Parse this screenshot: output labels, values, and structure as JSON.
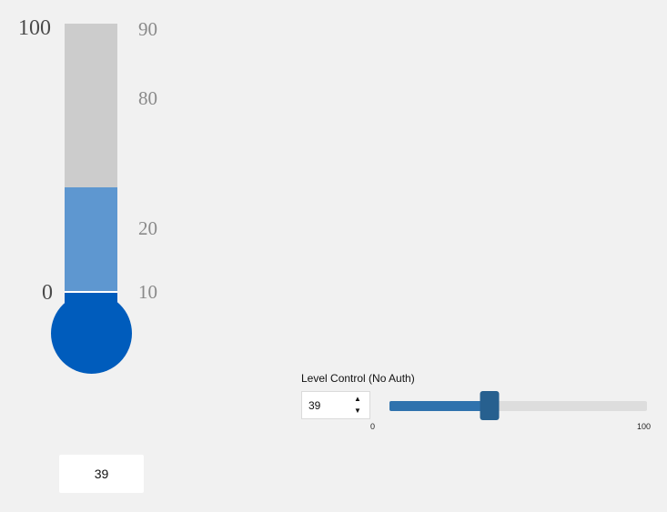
{
  "gauge": {
    "scale_max": "100",
    "scale_min": "0",
    "tick_labels": [
      "90",
      "80",
      "20",
      "10"
    ],
    "level_fraction": 0.39,
    "readout": "39",
    "colors": {
      "tube_empty": "#cccccc",
      "tube_fill": "#5e97d0",
      "bulb": "#005cbc"
    }
  },
  "level_control": {
    "label": "Level Control (No Auth)",
    "value": "39",
    "slider_min_label": "0",
    "slider_max_label": "100",
    "slider_value": 39,
    "slider_min": 0,
    "slider_max": 100,
    "spin_up_icon": "chevron-up-icon",
    "spin_down_icon": "chevron-down-icon",
    "colors": {
      "fill": "#2f72ad",
      "thumb": "#27608f",
      "track": "#dddddd"
    }
  }
}
